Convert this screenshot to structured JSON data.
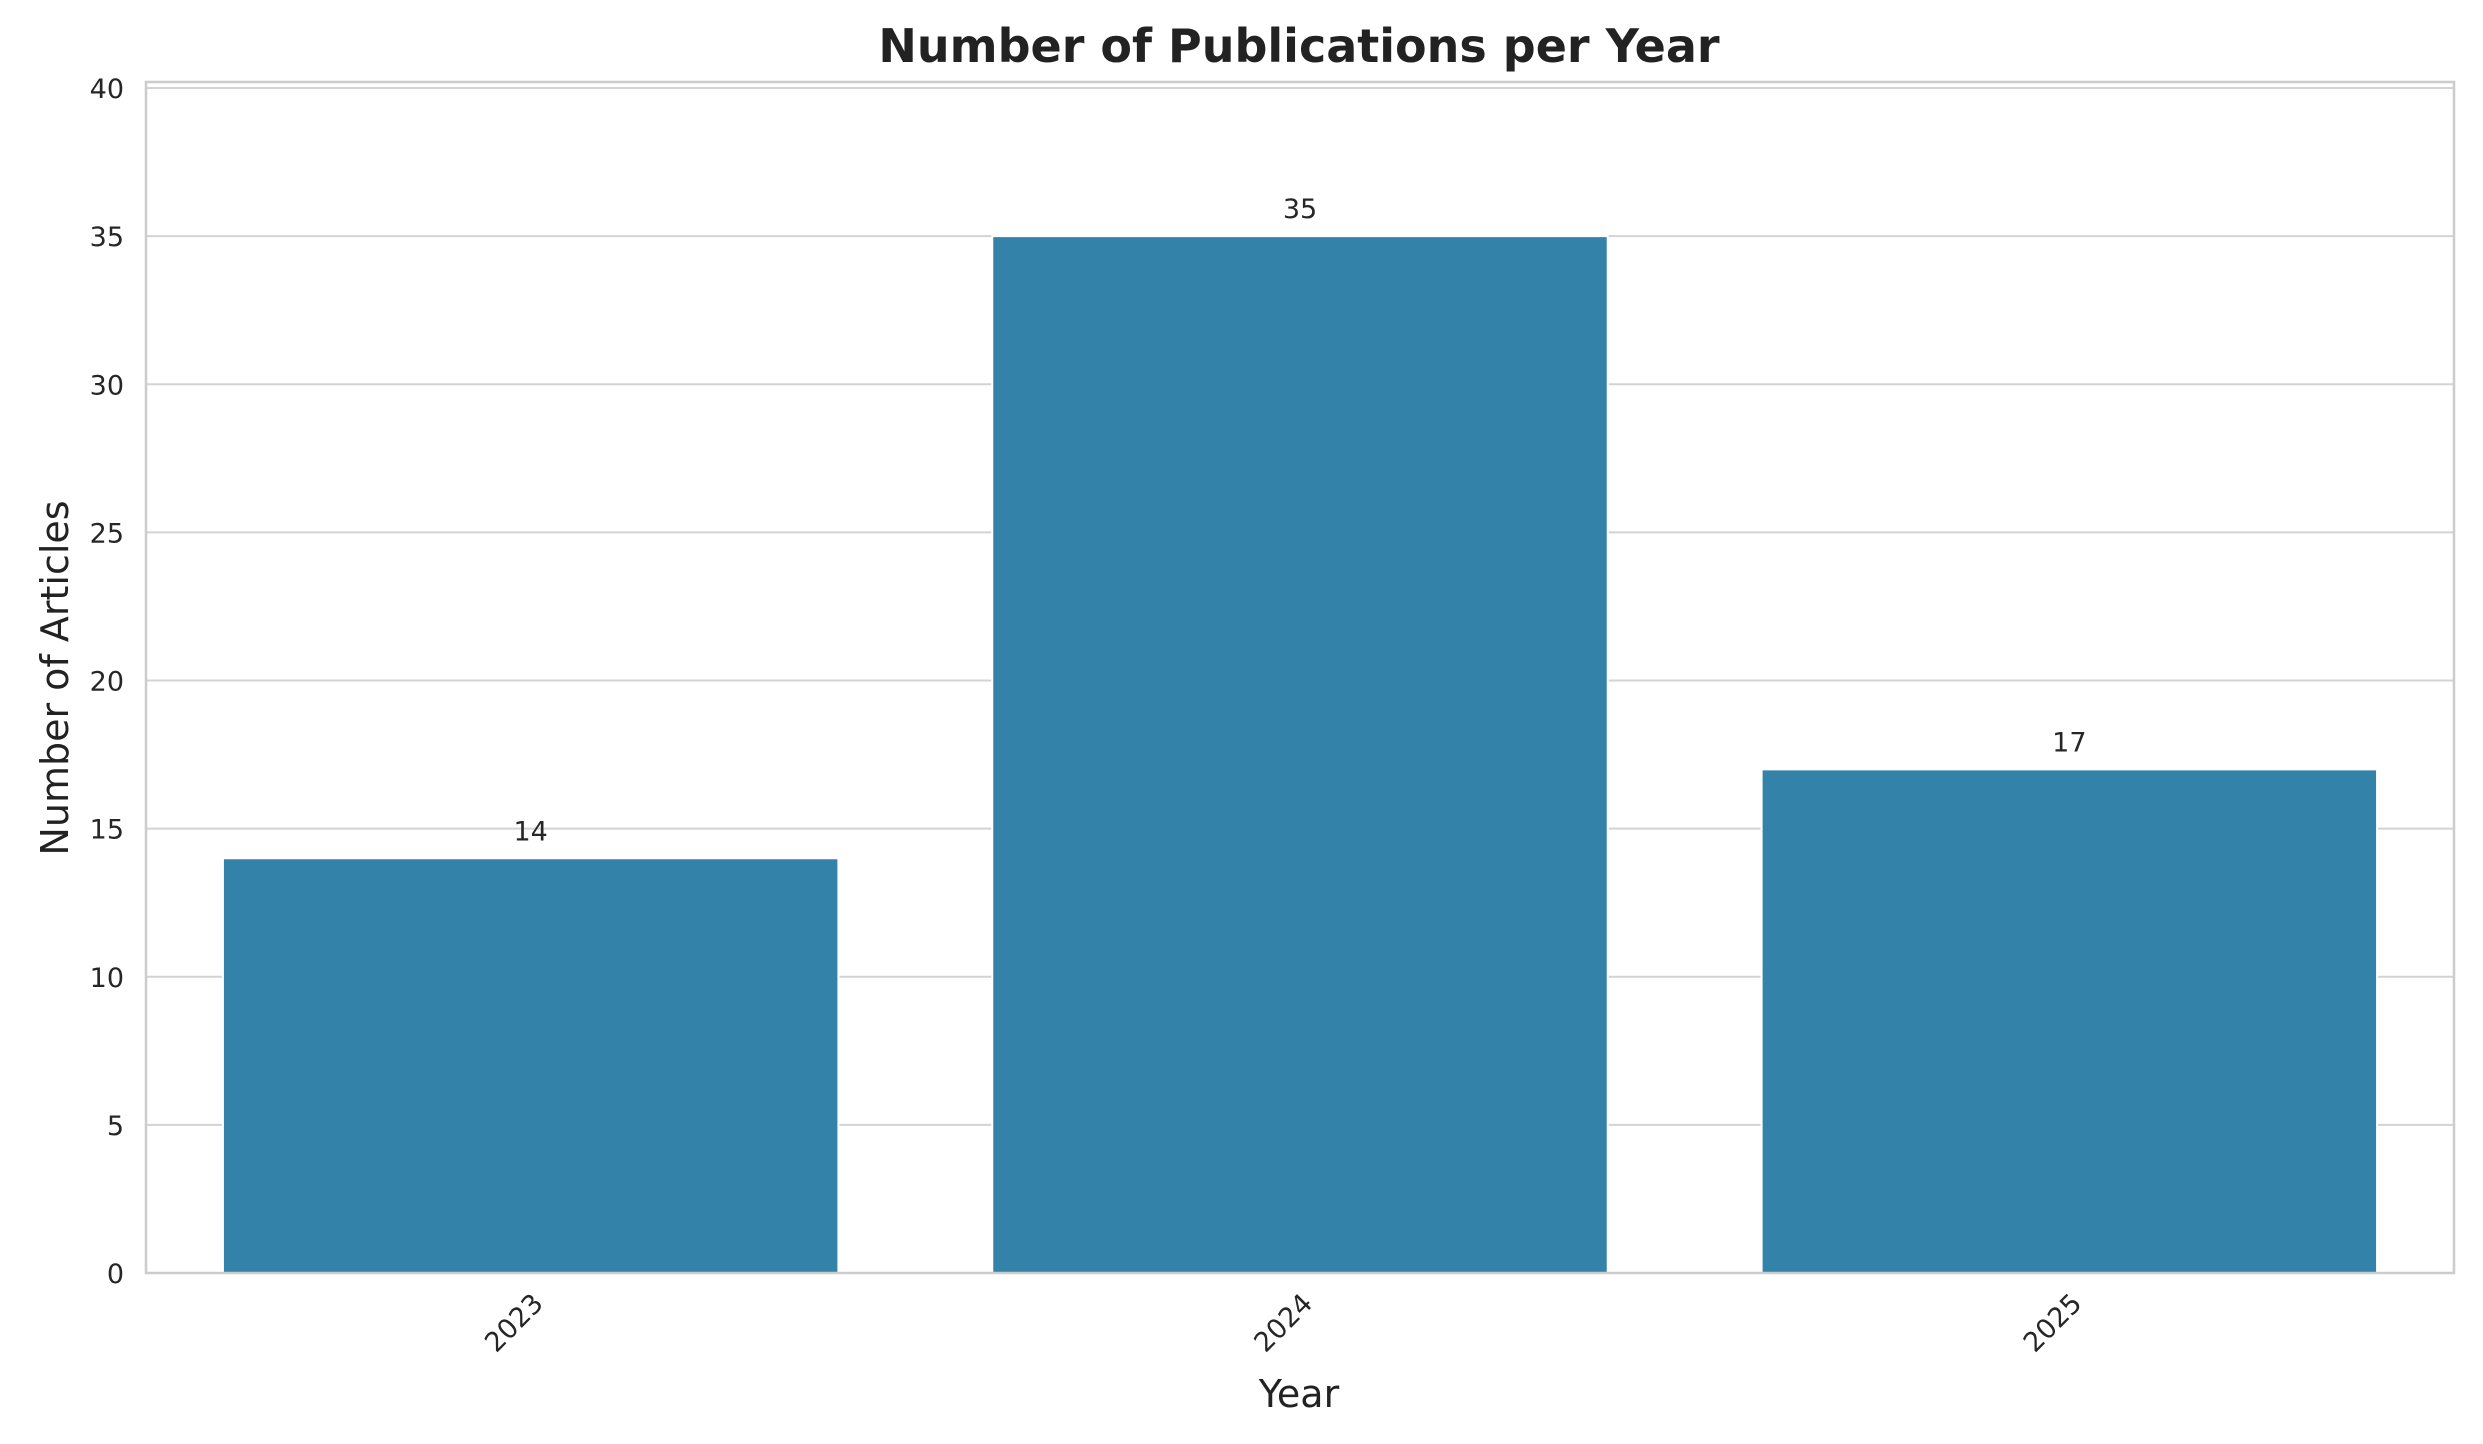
{
  "chart_data": {
    "type": "bar",
    "title": "Number of Publications per Year",
    "xlabel": "Year",
    "ylabel": "Number of Articles",
    "categories": [
      "2023",
      "2024",
      "2025"
    ],
    "values": [
      14,
      35,
      17
    ],
    "data_labels": [
      "14",
      "35",
      "17"
    ],
    "ylim": [
      0,
      40
    ],
    "yticks": [
      0,
      5,
      10,
      15,
      20,
      25,
      30,
      35,
      40
    ],
    "ytick_labels": [
      "0",
      "5",
      "10",
      "15",
      "20",
      "25",
      "30",
      "35",
      "40"
    ],
    "grid": true,
    "bar_color": "#3382aa"
  }
}
